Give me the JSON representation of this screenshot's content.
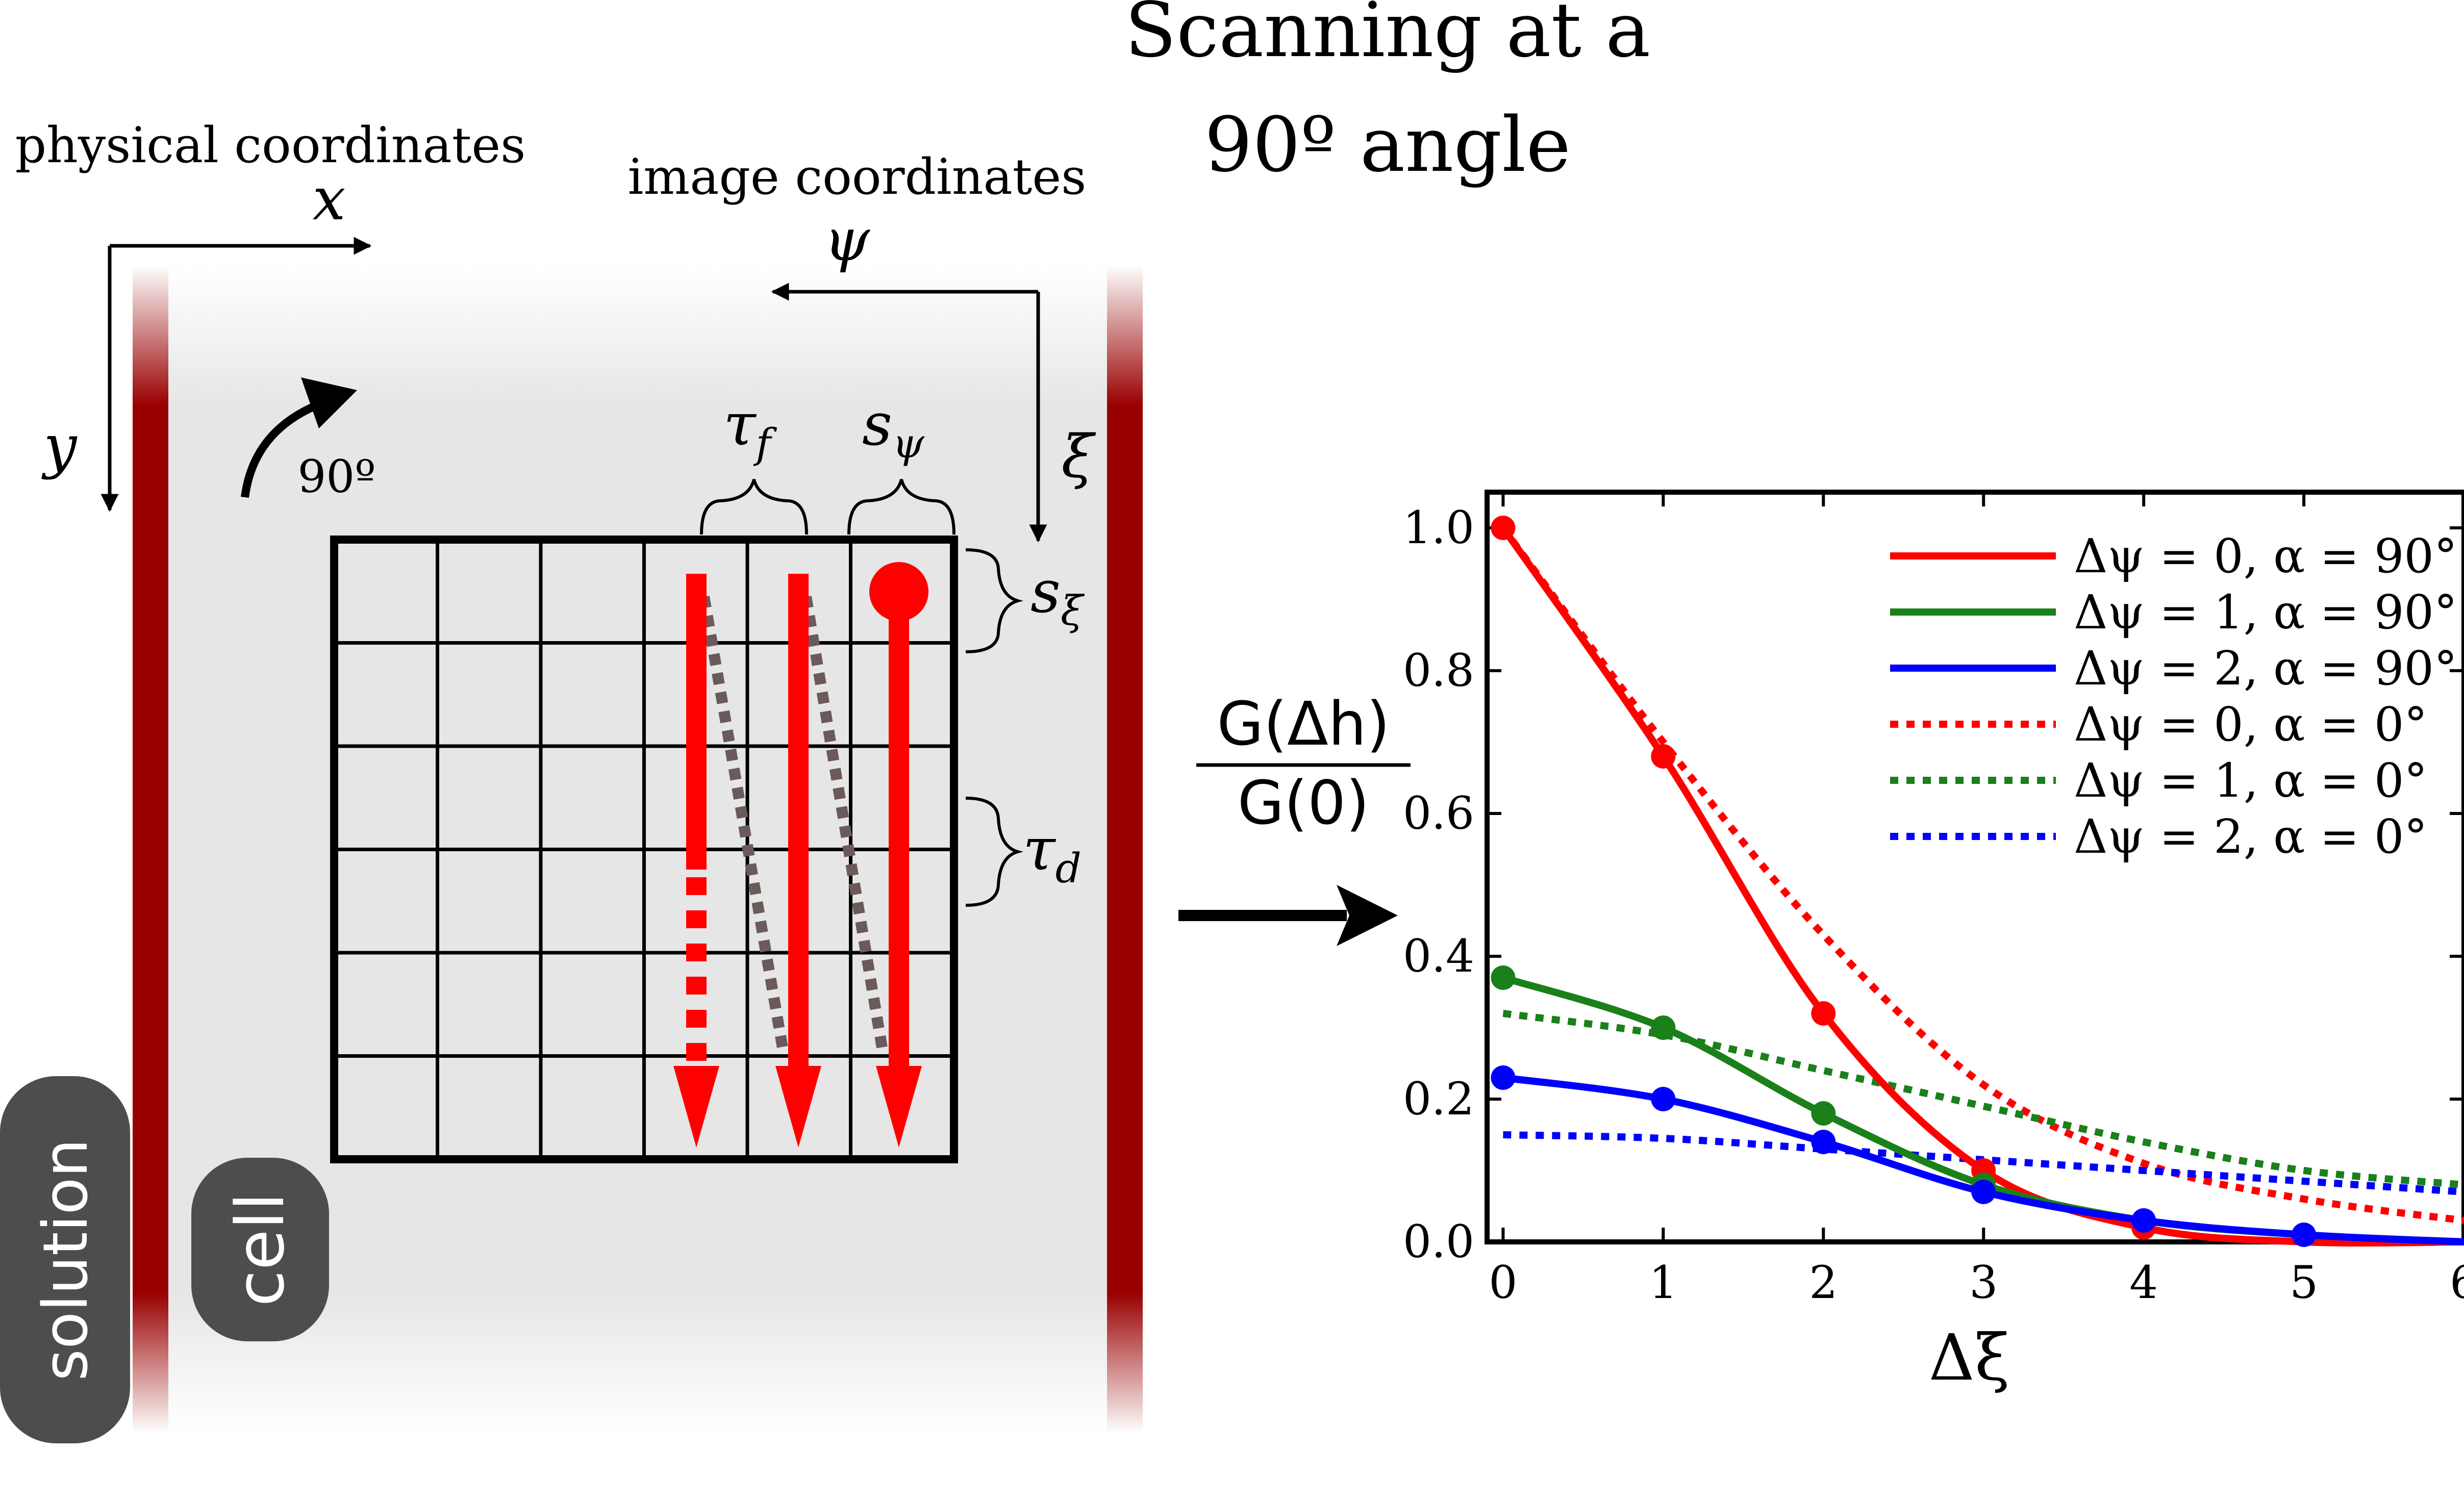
{
  "title": {
    "line1": "Scanning at a",
    "line2": "90º angle"
  },
  "scheme": {
    "physical_label": "physical coordinates",
    "x_label": "x",
    "y_label": "y",
    "image_label": "image coordinates",
    "psi_label": "ψ",
    "xi_label": "ξ",
    "rotation_label": "90º",
    "tau_f": {
      "base": "τ",
      "sub": "f"
    },
    "s_psi": {
      "base": "s",
      "sub": "ψ"
    },
    "s_xi": {
      "base": "s",
      "sub": "ξ"
    },
    "tau_d": {
      "base": "τ",
      "sub": "d"
    },
    "solution_label": "solution",
    "cell_label": "cell",
    "grid": {
      "rows": 6,
      "cols": 6
    }
  },
  "equation": {
    "numerator": "G(Δh)",
    "denominator": "G(0)"
  },
  "colors": {
    "membrane": "#990000",
    "scan_red": "#ff0000",
    "diag_gray": "#6b5a5a",
    "cell_bg": "#e6e6e6",
    "badge": "#4d4d4d",
    "red": "#ff0000",
    "green": "#1a801a",
    "blue": "#0000ff"
  },
  "chart_data": {
    "type": "line",
    "xlabel": "Δξ",
    "ylabel": "",
    "xlim": [
      -0.1,
      6.0
    ],
    "ylim": [
      0.0,
      1.05
    ],
    "xticks": [
      "0",
      "1",
      "2",
      "3",
      "4",
      "5",
      "6"
    ],
    "yticks": [
      "0.0",
      "0.2",
      "0.4",
      "0.6",
      "0.8",
      "1.0"
    ],
    "legend_position": "top-right",
    "series": [
      {
        "name": "Δψ = 0, α = 90°",
        "color": "#ff0000",
        "style": "solid",
        "x": [
          0,
          1,
          2,
          3,
          4,
          5,
          6
        ],
        "y": [
          1.0,
          0.68,
          0.32,
          0.1,
          0.02,
          0.0,
          0.0
        ],
        "markers": [
          true,
          true,
          true,
          true,
          true,
          false,
          false
        ]
      },
      {
        "name": "Δψ = 1, α = 90°",
        "color": "#1a801a",
        "style": "solid",
        "x": [
          0,
          1,
          2,
          3,
          4,
          5,
          6
        ],
        "y": [
          0.37,
          0.3,
          0.18,
          0.08,
          0.03,
          0.01,
          0.0
        ],
        "markers": [
          true,
          true,
          true,
          true,
          false,
          false,
          false
        ]
      },
      {
        "name": "Δψ = 2, α = 90°",
        "color": "#0000ff",
        "style": "solid",
        "x": [
          0,
          1,
          2,
          3,
          4,
          5,
          6
        ],
        "y": [
          0.23,
          0.2,
          0.14,
          0.07,
          0.03,
          0.01,
          0.0
        ],
        "markers": [
          true,
          true,
          true,
          true,
          true,
          true,
          false
        ]
      },
      {
        "name": "Δψ = 0, α = 0°",
        "color": "#ff0000",
        "style": "dotted",
        "x": [
          0,
          1,
          2,
          3,
          4,
          5,
          6
        ],
        "y": [
          1.0,
          0.7,
          0.43,
          0.22,
          0.11,
          0.06,
          0.03
        ],
        "markers": [
          false,
          false,
          false,
          false,
          false,
          false,
          false
        ]
      },
      {
        "name": "Δψ = 1, α = 0°",
        "color": "#1a801a",
        "style": "dotted",
        "x": [
          0,
          1,
          2,
          3,
          4,
          5,
          6
        ],
        "y": [
          0.32,
          0.29,
          0.24,
          0.19,
          0.14,
          0.1,
          0.08
        ],
        "markers": [
          false,
          false,
          false,
          false,
          false,
          false,
          false
        ]
      },
      {
        "name": "Δψ = 2, α = 0°",
        "color": "#0000ff",
        "style": "dotted",
        "x": [
          0,
          1,
          2,
          3,
          4,
          5,
          6
        ],
        "y": [
          0.15,
          0.145,
          0.13,
          0.115,
          0.1,
          0.085,
          0.07
        ],
        "markers": [
          false,
          false,
          false,
          false,
          false,
          false,
          false
        ]
      }
    ]
  }
}
